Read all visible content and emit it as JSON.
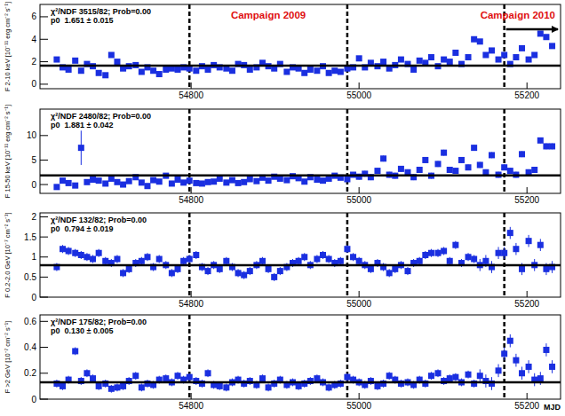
{
  "chart_data": [
    {
      "type": "scatter",
      "y_label": "F 2-10 keV [10⁻¹¹ erg cm⁻² s⁻¹]",
      "xlim": [
        54620,
        55240
      ],
      "xticks": [
        54800,
        55000,
        55200
      ],
      "ylim": [
        -0.4,
        7.1
      ],
      "yticks": [
        0,
        2,
        4,
        6
      ],
      "grid": false,
      "annotations": [
        "χ²/NDF 3515/82; Prob=0.00"
      ],
      "fit": {
        "label": "p0  1.651 ± 0.015",
        "value": 1.651
      },
      "vlines": [
        54798,
        54986,
        55173
      ],
      "campaigns": [
        {
          "label": "Campaign 2009",
          "start": 54798,
          "end": 54986
        },
        {
          "label": "Campaign 2010",
          "start": 55173
        }
      ],
      "x": [
        54640,
        54647,
        54654,
        54662,
        54669,
        54676,
        54683,
        54690,
        54698,
        54705,
        54712,
        54719,
        54726,
        54734,
        54741,
        54748,
        54755,
        54762,
        54770,
        54777,
        54784,
        54791,
        54798,
        54806,
        54813,
        54820,
        54827,
        54834,
        54842,
        54849,
        54856,
        54863,
        54870,
        54878,
        54885,
        54892,
        54899,
        54906,
        54914,
        54921,
        54928,
        54935,
        54942,
        54950,
        54957,
        54964,
        54971,
        54978,
        54986,
        54993,
        55000,
        55007,
        55014,
        55022,
        55029,
        55036,
        55043,
        55050,
        55058,
        55065,
        55072,
        55079,
        55086,
        55094,
        55101,
        55108,
        55115,
        55122,
        55130,
        55137,
        55144,
        55151,
        55158,
        55166,
        55173,
        55180,
        55187,
        55194,
        55202,
        55209,
        55216,
        55223,
        55230
      ],
      "series": [
        {
          "color": "#1a2fe0",
          "marker": "square",
          "values": [
            2.2,
            1.5,
            1.3,
            2.1,
            1.2,
            1.8,
            1.6,
            1.0,
            0.8,
            2.6,
            2.0,
            1.4,
            1.6,
            1.7,
            1.1,
            1.5,
            1.2,
            0.9,
            1.3,
            1.4,
            1.3,
            1.5,
            1.4,
            1.2,
            1.6,
            1.3,
            1.7,
            1.5,
            1.4,
            1.2,
            1.8,
            1.7,
            1.3,
            1.5,
            1.9,
            1.6,
            1.4,
            1.8,
            1.1,
            1.5,
            1.4,
            1.0,
            1.3,
            1.2,
            1.6,
            1.0,
            1.2,
            1.1,
            1.4,
            1.5,
            2.3,
            1.5,
            1.9,
            1.6,
            2.0,
            1.4,
            1.7,
            2.2,
            1.8,
            1.3,
            2.1,
            1.9,
            2.4,
            1.6,
            2.2,
            2.0,
            2.8,
            1.8,
            2.4,
            4.0,
            3.8,
            2.6,
            3.0,
            2.2,
            2.6,
            1.8,
            2.4,
            3.2,
            2.2,
            2.6,
            4.5,
            4.2,
            3.4
          ],
          "errors": [
            0.08,
            0.08,
            0.08,
            0.08,
            0.08,
            0.08,
            0.08,
            0.08,
            0.08,
            0.08,
            0.08,
            0.08,
            0.08,
            0.08,
            0.08,
            0.08,
            0.08,
            0.08,
            0.08,
            0.08,
            0.08,
            0.08,
            0.08,
            0.08,
            0.08,
            0.08,
            0.08,
            0.08,
            0.08,
            0.08,
            0.08,
            0.08,
            0.08,
            0.08,
            0.08,
            0.08,
            0.08,
            0.08,
            0.08,
            0.08,
            0.08,
            0.08,
            0.08,
            0.08,
            0.08,
            0.08,
            0.08,
            0.08,
            0.08,
            0.08,
            0.12,
            0.12,
            0.12,
            0.12,
            0.12,
            0.12,
            0.12,
            0.12,
            0.12,
            0.12,
            0.12,
            0.12,
            0.12,
            0.12,
            0.12,
            0.12,
            0.12,
            0.12,
            0.12,
            0.12,
            0.12,
            0.12,
            0.12,
            0.12,
            0.12,
            0.12,
            0.12,
            0.12,
            0.12,
            0.12,
            0.12,
            0.12,
            0.12
          ]
        }
      ]
    },
    {
      "type": "scatter",
      "y_label": "F 15-50 keV [10⁻¹¹ erg cm⁻² s⁻¹]",
      "xlim": [
        54620,
        55240
      ],
      "xticks": [
        54800,
        55000,
        55200
      ],
      "ylim": [
        -1.8,
        15.4
      ],
      "yticks": [
        0,
        5,
        10
      ],
      "grid": false,
      "annotations": [
        "χ²/NDF 2480/82; Prob=0.00"
      ],
      "fit": {
        "label": "p0  1.881 ± 0.042",
        "value": 1.881
      },
      "vlines": [
        54798,
        54986,
        55173
      ],
      "x": [
        54640,
        54647,
        54654,
        54662,
        54669,
        54676,
        54683,
        54690,
        54698,
        54705,
        54712,
        54719,
        54726,
        54734,
        54741,
        54748,
        54755,
        54762,
        54770,
        54777,
        54784,
        54791,
        54798,
        54806,
        54813,
        54820,
        54827,
        54834,
        54842,
        54849,
        54856,
        54863,
        54870,
        54878,
        54885,
        54892,
        54899,
        54906,
        54914,
        54921,
        54928,
        54935,
        54942,
        54950,
        54957,
        54964,
        54971,
        54978,
        54986,
        54993,
        55000,
        55007,
        55014,
        55022,
        55029,
        55036,
        55043,
        55050,
        55058,
        55065,
        55072,
        55079,
        55086,
        55094,
        55101,
        55108,
        55115,
        55122,
        55130,
        55137,
        55144,
        55151,
        55158,
        55166,
        55173,
        55180,
        55187,
        55194,
        55202,
        55209,
        55216,
        55223,
        55230
      ],
      "series": [
        {
          "color": "#1a2fe0",
          "marker": "square",
          "values": [
            -0.5,
            0.8,
            0.3,
            -0.2,
            7.5,
            0.5,
            1.0,
            0.8,
            0.2,
            1.2,
            0.5,
            0.0,
            0.7,
            1.5,
            0.4,
            -0.3,
            0.9,
            0.6,
            1.8,
            0.2,
            1.0,
            0.4,
            0.8,
            0.3,
            0.2,
            0.5,
            0.6,
            1.2,
            0.4,
            0.9,
            0.3,
            0.5,
            1.1,
            0.7,
            1.4,
            0.8,
            1.6,
            1.2,
            0.9,
            1.7,
            1.3,
            0.6,
            1.5,
            1.0,
            0.8,
            1.2,
            1.8,
            1.4,
            1.1,
            2.0,
            1.6,
            2.2,
            1.5,
            2.8,
            5.3,
            2.0,
            1.8,
            3.2,
            2.5,
            1.5,
            3.0,
            5.0,
            1.8,
            4.2,
            6.5,
            3.0,
            2.8,
            5.0,
            3.5,
            7.5,
            4.0,
            2.5,
            6.0,
            2.0,
            3.5,
            2.8,
            2.0,
            6.2,
            2.5,
            3.0,
            9.0,
            7.8,
            7.8
          ],
          "errors": [
            0.4,
            0.4,
            0.4,
            0.4,
            3.5,
            0.4,
            0.4,
            0.4,
            0.4,
            0.4,
            0.4,
            0.4,
            0.4,
            0.4,
            0.4,
            0.4,
            0.4,
            0.4,
            0.4,
            0.4,
            0.4,
            0.4,
            0.4,
            0.4,
            0.4,
            0.4,
            0.4,
            0.4,
            0.4,
            0.4,
            0.4,
            0.4,
            0.4,
            0.4,
            0.4,
            0.4,
            0.4,
            0.4,
            0.4,
            0.4,
            0.4,
            0.4,
            0.4,
            0.4,
            0.4,
            0.4,
            0.4,
            0.4,
            0.4,
            0.4,
            0.6,
            0.6,
            0.6,
            0.6,
            0.6,
            0.6,
            0.6,
            0.6,
            0.6,
            0.6,
            0.6,
            0.6,
            0.6,
            0.6,
            0.6,
            0.6,
            0.6,
            0.6,
            0.6,
            0.6,
            0.6,
            0.6,
            0.6,
            0.6,
            0.6,
            0.6,
            0.6,
            0.6,
            0.6,
            0.6,
            0.6,
            0.6,
            0.6
          ]
        }
      ]
    },
    {
      "type": "scatter",
      "y_label": "F 0.2-2.0 GeV [10⁻⁷ cm⁻² s⁻¹]",
      "xlim": [
        54620,
        55240
      ],
      "xticks": [
        54800,
        55000,
        55200
      ],
      "ylim": [
        0,
        2.1
      ],
      "yticks": [
        0,
        0.5,
        1,
        1.5,
        2
      ],
      "grid": false,
      "annotations": [
        "χ²/NDF 132/82; Prob=0.00"
      ],
      "fit": {
        "label": "p0  0.794 ± 0.019",
        "value": 0.794
      },
      "vlines": [
        54798,
        54986,
        55173
      ],
      "x": [
        54640,
        54647,
        54654,
        54662,
        54669,
        54676,
        54683,
        54690,
        54698,
        54705,
        54712,
        54719,
        54726,
        54734,
        54741,
        54748,
        54755,
        54762,
        54770,
        54777,
        54784,
        54791,
        54798,
        54806,
        54813,
        54820,
        54827,
        54834,
        54842,
        54849,
        54856,
        54863,
        54870,
        54878,
        54885,
        54892,
        54899,
        54906,
        54914,
        54921,
        54928,
        54935,
        54942,
        54950,
        54957,
        54964,
        54971,
        54978,
        54986,
        54993,
        55000,
        55007,
        55014,
        55022,
        55029,
        55036,
        55043,
        55050,
        55058,
        55065,
        55072,
        55079,
        55086,
        55094,
        55101,
        55108,
        55115,
        55122,
        55130,
        55137,
        55144,
        55151,
        55158,
        55166,
        55173,
        55180,
        55187,
        55194,
        55202,
        55209,
        55216,
        55223,
        55230
      ],
      "series": [
        {
          "color": "#1a2fe0",
          "marker": "square",
          "values": [
            0.75,
            1.2,
            1.15,
            1.1,
            1.05,
            1.0,
            0.95,
            1.1,
            0.9,
            0.85,
            0.95,
            0.6,
            0.7,
            0.85,
            0.9,
            1.0,
            0.75,
            0.95,
            0.8,
            0.6,
            0.7,
            0.9,
            0.95,
            1.05,
            0.75,
            0.65,
            0.8,
            0.7,
            0.9,
            0.75,
            0.6,
            0.55,
            0.65,
            0.8,
            0.9,
            0.7,
            0.5,
            0.65,
            0.75,
            0.85,
            0.9,
            1.0,
            0.8,
            0.95,
            1.05,
            0.95,
            0.85,
            0.9,
            1.2,
            1.0,
            0.9,
            0.8,
            0.7,
            0.85,
            0.75,
            0.6,
            0.7,
            0.8,
            0.65,
            0.85,
            0.9,
            1.05,
            1.1,
            1.1,
            1.15,
            0.9,
            1.3,
            0.85,
            1.0,
            0.95,
            0.8,
            0.9,
            0.75,
            1.1,
            1.1,
            1.6,
            1.2,
            0.7,
            1.4,
            0.8,
            1.3,
            0.7,
            0.75
          ],
          "errors": [
            0.1,
            0.1,
            0.1,
            0.1,
            0.1,
            0.1,
            0.1,
            0.1,
            0.1,
            0.1,
            0.1,
            0.1,
            0.1,
            0.1,
            0.1,
            0.1,
            0.1,
            0.1,
            0.1,
            0.1,
            0.1,
            0.1,
            0.1,
            0.1,
            0.1,
            0.1,
            0.1,
            0.1,
            0.1,
            0.1,
            0.1,
            0.1,
            0.1,
            0.1,
            0.1,
            0.1,
            0.1,
            0.1,
            0.1,
            0.1,
            0.1,
            0.1,
            0.1,
            0.1,
            0.1,
            0.1,
            0.1,
            0.1,
            0.1,
            0.1,
            0.1,
            0.1,
            0.1,
            0.1,
            0.1,
            0.1,
            0.1,
            0.1,
            0.1,
            0.1,
            0.1,
            0.1,
            0.1,
            0.1,
            0.1,
            0.1,
            0.1,
            0.1,
            0.1,
            0.1,
            0.15,
            0.15,
            0.15,
            0.15,
            0.15,
            0.15,
            0.15,
            0.15,
            0.15,
            0.15,
            0.15,
            0.15,
            0.15
          ]
        }
      ]
    },
    {
      "type": "scatter",
      "y_label": "F >2 GeV [10⁻⁷ cm⁻² s⁻¹]",
      "x_label": "MJD",
      "xlim": [
        54620,
        55240
      ],
      "xticks": [
        54800,
        55000,
        55200
      ],
      "ylim": [
        0,
        0.65
      ],
      "yticks": [
        0,
        0.2,
        0.4,
        0.6
      ],
      "grid": false,
      "annotations": [
        "χ²/NDF 175/82; Prob=0.00"
      ],
      "fit": {
        "label": "p0  0.130 ± 0.005",
        "value": 0.13
      },
      "vlines": [
        54798,
        54986,
        55173
      ],
      "x": [
        54640,
        54647,
        54654,
        54662,
        54669,
        54676,
        54683,
        54690,
        54698,
        54705,
        54712,
        54719,
        54726,
        54734,
        54741,
        54748,
        54755,
        54762,
        54770,
        54777,
        54784,
        54791,
        54798,
        54806,
        54813,
        54820,
        54827,
        54834,
        54842,
        54849,
        54856,
        54863,
        54870,
        54878,
        54885,
        54892,
        54899,
        54906,
        54914,
        54921,
        54928,
        54935,
        54942,
        54950,
        54957,
        54964,
        54971,
        54978,
        54986,
        54993,
        55000,
        55007,
        55014,
        55022,
        55029,
        55036,
        55043,
        55050,
        55058,
        55065,
        55072,
        55079,
        55086,
        55094,
        55101,
        55108,
        55115,
        55122,
        55130,
        55137,
        55144,
        55151,
        55158,
        55166,
        55173,
        55180,
        55187,
        55194,
        55202,
        55209,
        55216,
        55223,
        55230
      ],
      "series": [
        {
          "color": "#1a2fe0",
          "marker": "square",
          "values": [
            0.12,
            0.1,
            0.15,
            0.37,
            0.14,
            0.2,
            0.16,
            0.1,
            0.12,
            0.08,
            0.09,
            0.1,
            0.14,
            0.18,
            0.09,
            0.12,
            0.11,
            0.15,
            0.16,
            0.13,
            0.18,
            0.15,
            0.17,
            0.14,
            0.12,
            0.2,
            0.11,
            0.1,
            0.09,
            0.13,
            0.15,
            0.12,
            0.14,
            0.11,
            0.16,
            0.09,
            0.12,
            0.15,
            0.11,
            0.13,
            0.1,
            0.12,
            0.14,
            0.16,
            0.13,
            0.09,
            0.11,
            0.12,
            0.17,
            0.15,
            0.13,
            0.11,
            0.14,
            0.1,
            0.12,
            0.18,
            0.15,
            0.12,
            0.13,
            0.11,
            0.15,
            0.12,
            0.18,
            0.2,
            0.14,
            0.16,
            0.17,
            0.13,
            0.19,
            0.12,
            0.18,
            0.14,
            0.12,
            0.22,
            0.35,
            0.45,
            0.3,
            0.2,
            0.25,
            0.15,
            0.16,
            0.38,
            0.25
          ],
          "errors": [
            0.03,
            0.03,
            0.03,
            0.03,
            0.03,
            0.03,
            0.03,
            0.03,
            0.03,
            0.03,
            0.03,
            0.03,
            0.03,
            0.03,
            0.03,
            0.03,
            0.03,
            0.03,
            0.03,
            0.03,
            0.03,
            0.03,
            0.03,
            0.03,
            0.03,
            0.03,
            0.03,
            0.03,
            0.03,
            0.03,
            0.03,
            0.03,
            0.03,
            0.03,
            0.03,
            0.03,
            0.03,
            0.03,
            0.03,
            0.03,
            0.03,
            0.03,
            0.03,
            0.03,
            0.03,
            0.03,
            0.03,
            0.03,
            0.03,
            0.03,
            0.03,
            0.03,
            0.03,
            0.03,
            0.03,
            0.03,
            0.03,
            0.03,
            0.03,
            0.03,
            0.03,
            0.03,
            0.03,
            0.03,
            0.03,
            0.03,
            0.03,
            0.03,
            0.03,
            0.03,
            0.05,
            0.05,
            0.05,
            0.05,
            0.05,
            0.05,
            0.05,
            0.05,
            0.05,
            0.05,
            0.05,
            0.05,
            0.05
          ]
        }
      ]
    }
  ]
}
